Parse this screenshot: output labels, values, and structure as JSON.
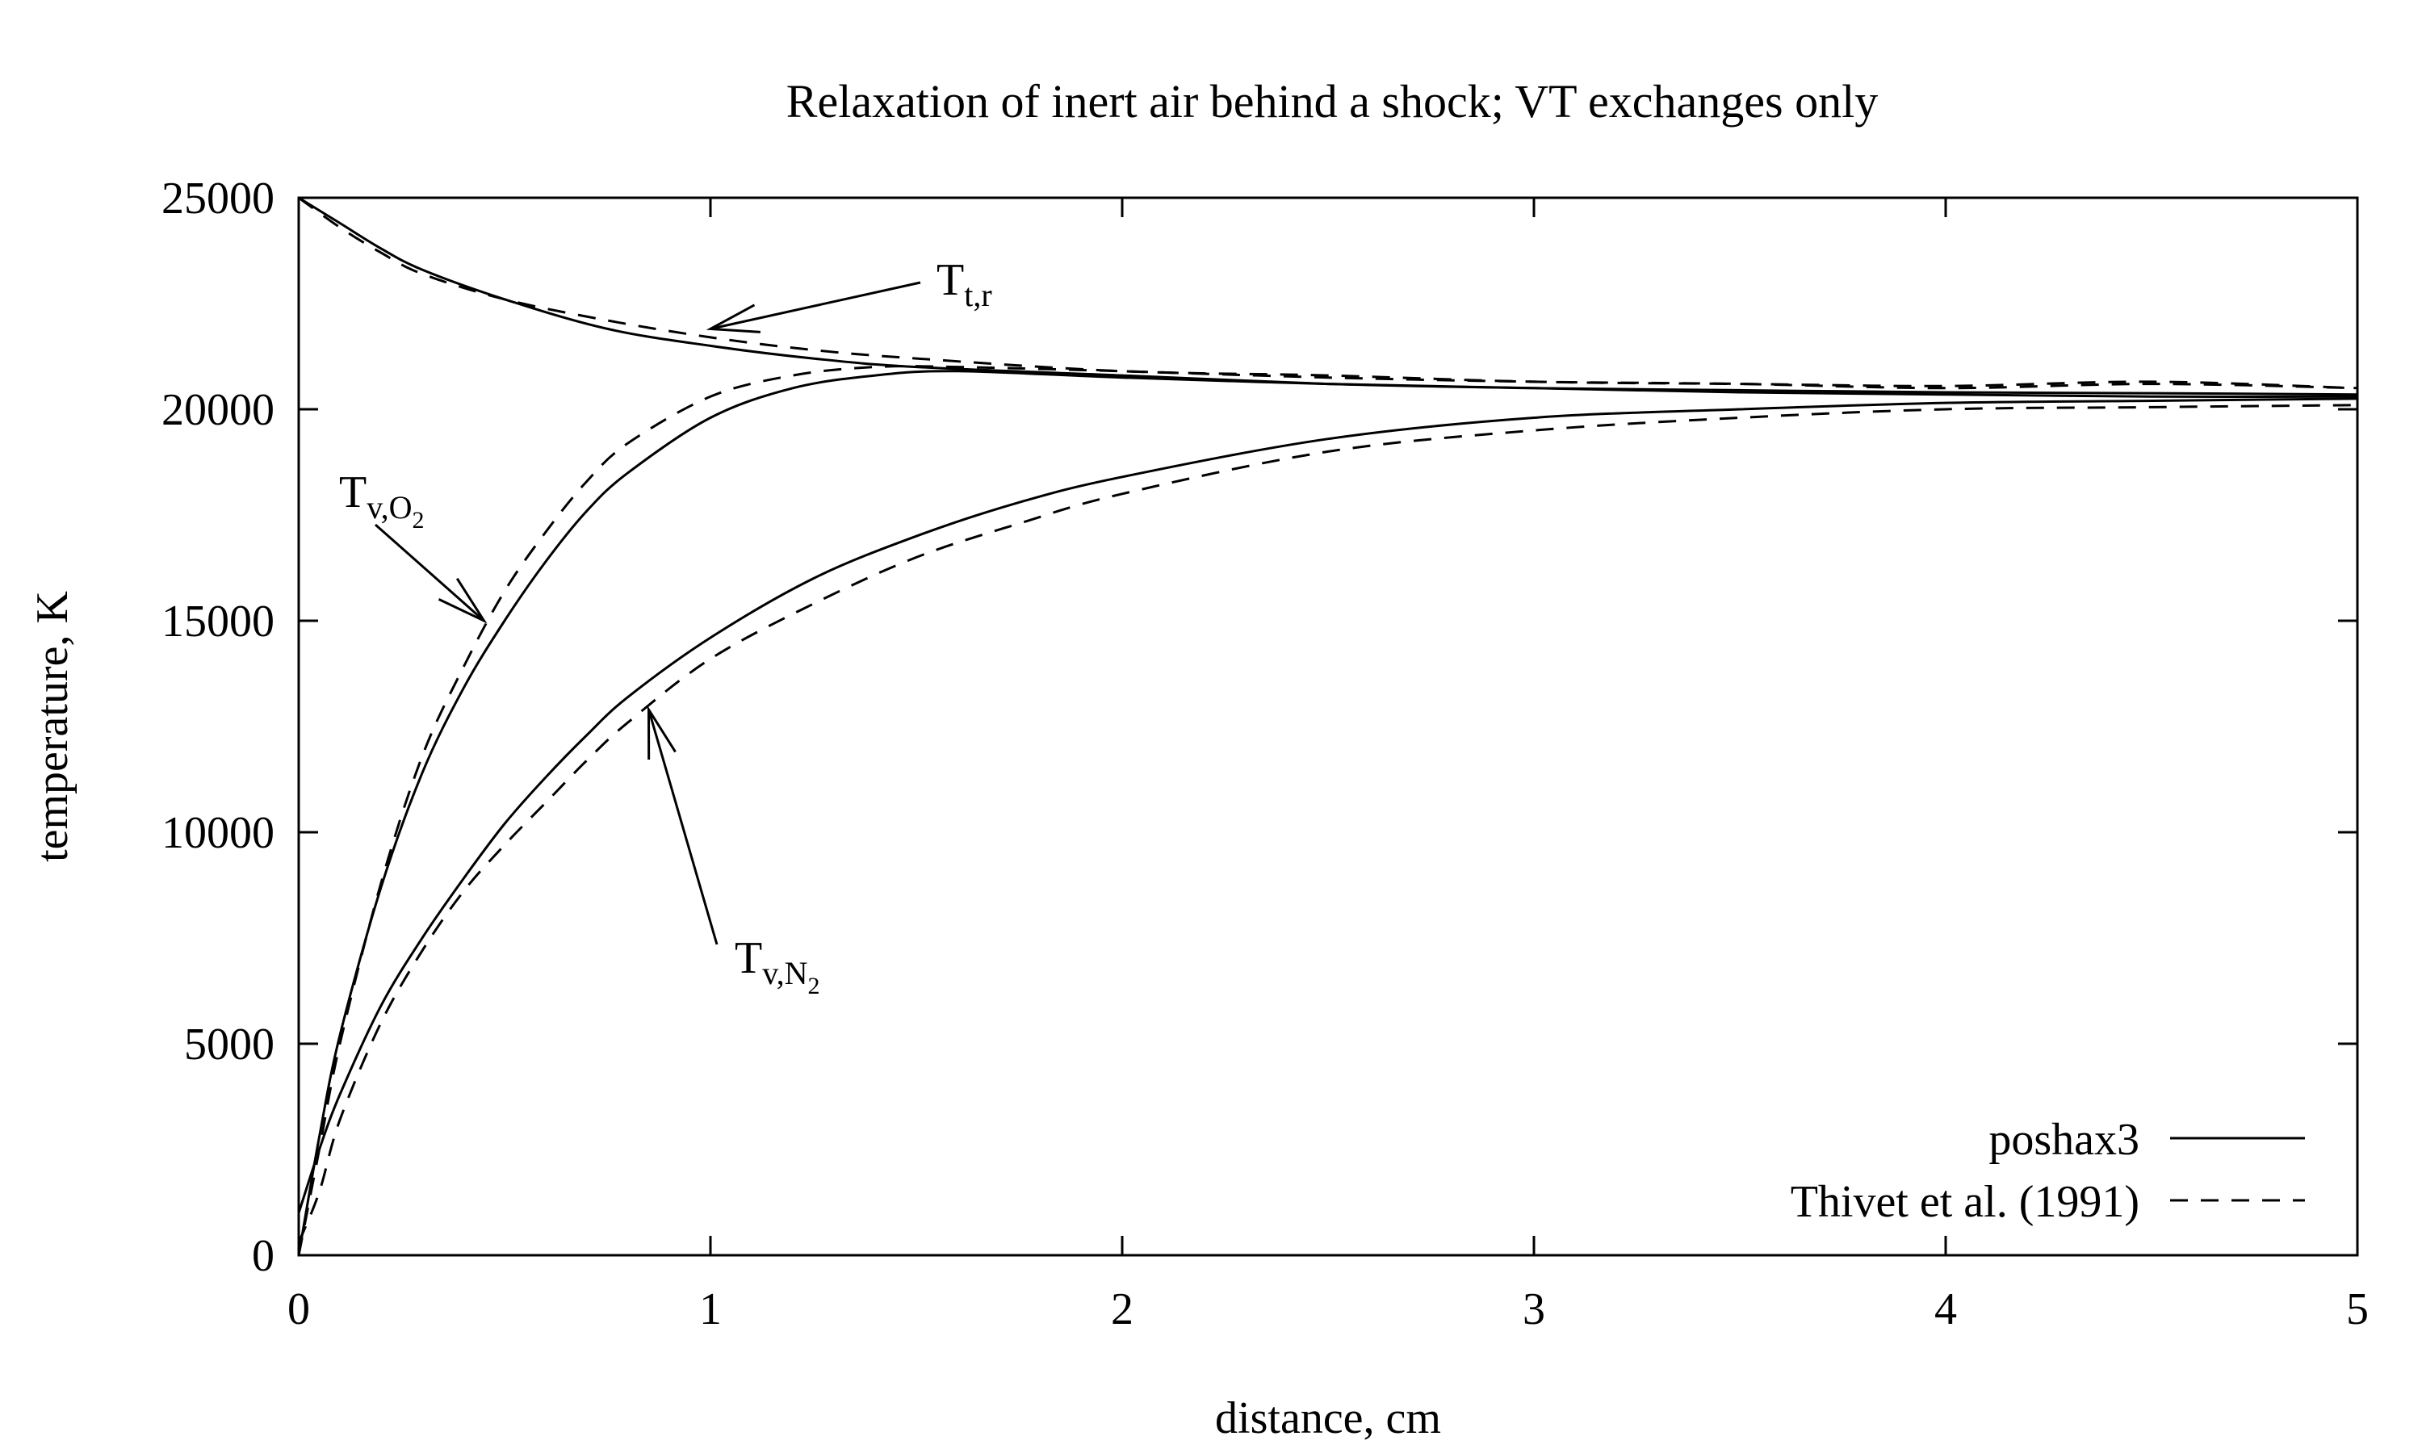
{
  "chart_data": {
    "type": "line",
    "title": "Relaxation of inert air behind a shock; VT exchanges only",
    "xlabel": "distance, cm",
    "ylabel": "temperature, K",
    "xlim": [
      0,
      5
    ],
    "ylim": [
      0,
      25000
    ],
    "xticks": [
      "0",
      "1",
      "2",
      "3",
      "4",
      "5"
    ],
    "yticks": [
      "0",
      "5000",
      "10000",
      "15000",
      "20000",
      "25000"
    ],
    "grid": false,
    "legend_position": "bottom-right",
    "legend": [
      {
        "label": "poshax3",
        "style": "solid"
      },
      {
        "label": "Thivet et al. (1991)",
        "style": "dashed"
      }
    ],
    "annotations": [
      {
        "main": "T",
        "sub": "t,r",
        "subsub": "",
        "points_to": [
          1.0,
          21900
        ]
      },
      {
        "main": "T",
        "sub": "v,O",
        "subsub": "2",
        "points_to": [
          0.45,
          15000
        ]
      },
      {
        "main": "T",
        "sub": "v,N",
        "subsub": "2",
        "points_to": [
          0.85,
          12900
        ]
      }
    ],
    "series": [
      {
        "legend": "poshax3",
        "curve": "T_t,r",
        "style": "solid",
        "x": [
          0,
          0.1,
          0.2,
          0.3,
          0.5,
          0.75,
          1.0,
          1.25,
          1.5,
          2.0,
          2.5,
          3.0,
          3.5,
          4.0,
          4.5,
          5.0
        ],
        "y": [
          25000,
          24400,
          23800,
          23300,
          22600,
          21900,
          21500,
          21200,
          21000,
          20800,
          20600,
          20500,
          20450,
          20400,
          20380,
          20350
        ]
      },
      {
        "legend": "poshax3",
        "curve": "T_v,O2",
        "style": "solid",
        "x": [
          0,
          0.05,
          0.1,
          0.2,
          0.3,
          0.4,
          0.5,
          0.6,
          0.7,
          0.8,
          1.0,
          1.2,
          1.4,
          1.6,
          2.0,
          2.5,
          3.0,
          3.5,
          4.0,
          4.5,
          5.0
        ],
        "y": [
          0,
          2800,
          5200,
          8700,
          11400,
          13400,
          15000,
          16400,
          17600,
          18500,
          19800,
          20500,
          20800,
          20900,
          20750,
          20600,
          20500,
          20400,
          20350,
          20300,
          20300
        ]
      },
      {
        "legend": "poshax3",
        "curve": "T_v,N2",
        "style": "solid",
        "x": [
          0,
          0.05,
          0.1,
          0.2,
          0.3,
          0.4,
          0.5,
          0.6,
          0.7,
          0.8,
          1.0,
          1.25,
          1.5,
          1.75,
          2.0,
          2.5,
          3.0,
          3.5,
          4.0,
          4.5,
          5.0
        ],
        "y": [
          1000,
          2500,
          3800,
          5900,
          7500,
          8900,
          10200,
          11300,
          12300,
          13200,
          14600,
          16000,
          17000,
          17800,
          18400,
          19300,
          19800,
          20000,
          20150,
          20200,
          20250
        ]
      },
      {
        "legend": "Thivet et al. (1991)",
        "curve": "T_t,r",
        "style": "dashed",
        "x": [
          0,
          0.1,
          0.2,
          0.3,
          0.5,
          0.75,
          1.0,
          1.25,
          1.5,
          2.0,
          2.5,
          3.0,
          3.5,
          4.0,
          4.5,
          5.0
        ],
        "y": [
          25000,
          24300,
          23700,
          23200,
          22600,
          22100,
          21700,
          21400,
          21200,
          20900,
          20800,
          20650,
          20600,
          20550,
          20650,
          20500
        ]
      },
      {
        "legend": "Thivet et al. (1991)",
        "curve": "T_v,O2",
        "style": "dashed",
        "x": [
          0,
          0.05,
          0.1,
          0.2,
          0.3,
          0.4,
          0.5,
          0.6,
          0.7,
          0.8,
          1.0,
          1.2,
          1.4,
          1.6,
          2.0,
          2.5,
          3.0,
          3.5,
          4.0,
          4.5,
          5.0
        ],
        "y": [
          0,
          2500,
          5000,
          8800,
          11800,
          13900,
          15700,
          17100,
          18300,
          19200,
          20300,
          20800,
          21000,
          21000,
          20900,
          20750,
          20650,
          20600,
          20500,
          20600,
          20500
        ]
      },
      {
        "legend": "Thivet et al. (1991)",
        "curve": "T_v,N2",
        "style": "dashed",
        "x": [
          0,
          0.05,
          0.1,
          0.2,
          0.3,
          0.4,
          0.5,
          0.6,
          0.7,
          0.8,
          1.0,
          1.25,
          1.5,
          1.75,
          2.0,
          2.5,
          3.0,
          3.5,
          4.0,
          4.5,
          5.0
        ],
        "y": [
          300,
          1500,
          3200,
          5500,
          7200,
          8600,
          9700,
          10700,
          11700,
          12600,
          14100,
          15400,
          16500,
          17300,
          18000,
          19000,
          19500,
          19800,
          20000,
          20050,
          20100
        ]
      }
    ]
  }
}
